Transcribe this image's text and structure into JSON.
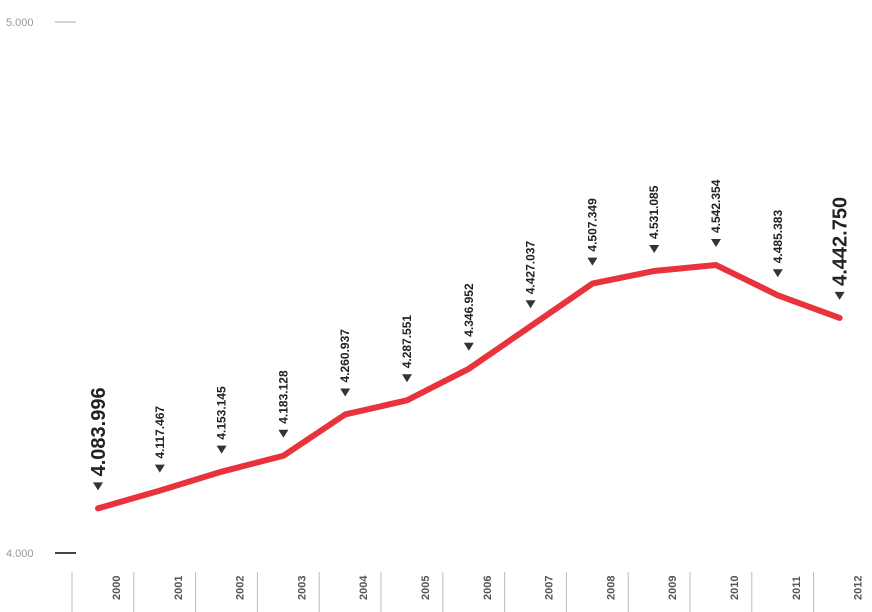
{
  "chart_data": {
    "type": "line",
    "categories": [
      "2000",
      "2001",
      "2002",
      "2003",
      "2004",
      "2005",
      "2006",
      "2007",
      "2008",
      "2009",
      "2010",
      "2011",
      "2012"
    ],
    "series": [
      {
        "color": "#e8323c",
        "values": [
          4083.996,
          4117.467,
          4153.145,
          4183.128,
          4260.937,
          4287.551,
          4346.952,
          4427.037,
          4507.349,
          4531.085,
          4542.354,
          4485.383,
          4442.75
        ],
        "value_labels": [
          "4.083.996",
          "4.117.467",
          "4.153.145",
          "4.183.128",
          "4.260.937",
          "4.287.551",
          "4.346.952",
          "4.427.037",
          "4.507.349",
          "4.531.085",
          "4.542.354",
          "4.485.383",
          "4.442.750"
        ]
      }
    ],
    "ylim": [
      4000,
      5000
    ],
    "yticks": [
      {
        "value": 4000,
        "label": "4.000"
      },
      {
        "value": 5000,
        "label": "5.000"
      }
    ]
  }
}
